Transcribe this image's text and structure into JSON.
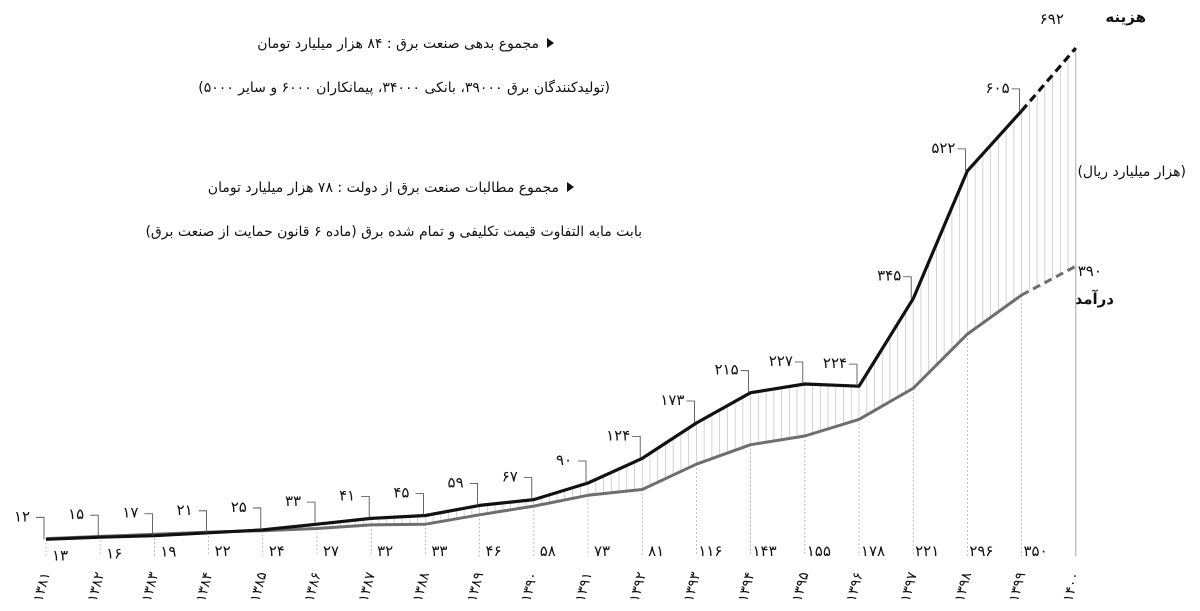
{
  "notes": {
    "debt_title": "مجموع بدهی صنعت برق : ۸۴ هزار میلیارد تومان",
    "debt_detail": "(تولیدکنندگان برق ۳۹۰۰۰، بانکی ۳۴۰۰۰، پیمانکاران ۶۰۰۰ و سایر ۵۰۰۰)",
    "claims_title": "مجموع مطالبات صنعت برق از دولت : ۷۸ هزار میلیارد تومان",
    "claims_detail": "بابت مابه التفاوت قیمت تکلیفی و تمام شده برق (ماده ۶ قانون حمایت از صنعت برق)"
  },
  "colors": {
    "cost_line": "#111111",
    "income_line": "#6e6e6e",
    "hatch": "#c8c8c8",
    "text": "#111111"
  },
  "chart_data": {
    "type": "line",
    "unit_label": "(هزار میلیارد ریال)",
    "categories": [
      "۱۳۸۱",
      "۱۳۸۲",
      "۱۳۸۳",
      "۱۳۸۴",
      "۱۳۸۵",
      "۱۳۸۶",
      "۱۳۸۷",
      "۱۳۸۸",
      "۱۳۸۹",
      "۱۳۹۰",
      "۱۳۹۱",
      "۱۳۹۲",
      "۱۳۹۳",
      "۱۳۹۴",
      "۱۳۹۵",
      "۱۳۹۶",
      "۱۳۹۷",
      "۱۳۹۸",
      "۱۳۹۹",
      "۱۴۰۰"
    ],
    "series": [
      {
        "name": "هزینه",
        "values": [
          12,
          15,
          17,
          21,
          25,
          33,
          41,
          45,
          59,
          67,
          90,
          124,
          173,
          215,
          227,
          224,
          345,
          522,
          605,
          692
        ],
        "labels": [
          "۱۲",
          "۱۵",
          "۱۷",
          "۲۱",
          "۲۵",
          "۳۳",
          "۴۱",
          "۴۵",
          "۵۹",
          "۶۷",
          "۹۰",
          "۱۲۴",
          "۱۷۳",
          "۲۱۵",
          "۲۲۷",
          "۲۲۴",
          "۳۴۵",
          "۵۲۲",
          "۶۰۵",
          "۶۹۲"
        ],
        "projected_from_index": 18
      },
      {
        "name": "درآمد",
        "values": [
          13,
          16,
          19,
          22,
          24,
          27,
          32,
          33,
          46,
          58,
          73,
          81,
          116,
          143,
          155,
          178,
          221,
          296,
          350,
          390
        ],
        "labels": [
          "۱۳",
          "۱۶",
          "۱۹",
          "۲۲",
          "۲۴",
          "۲۷",
          "۳۲",
          "۳۳",
          "۴۶",
          "۵۸",
          "۷۳",
          "۸۱",
          "۱۱۶",
          "۱۴۳",
          "۱۵۵",
          "۱۷۸",
          "۲۲۱",
          "۲۹۶",
          "۳۵۰",
          "۳۹۰"
        ],
        "projected_from_index": 18
      }
    ],
    "ylim": [
      0,
      692
    ],
    "grid": false,
    "legend": "inline-right"
  }
}
